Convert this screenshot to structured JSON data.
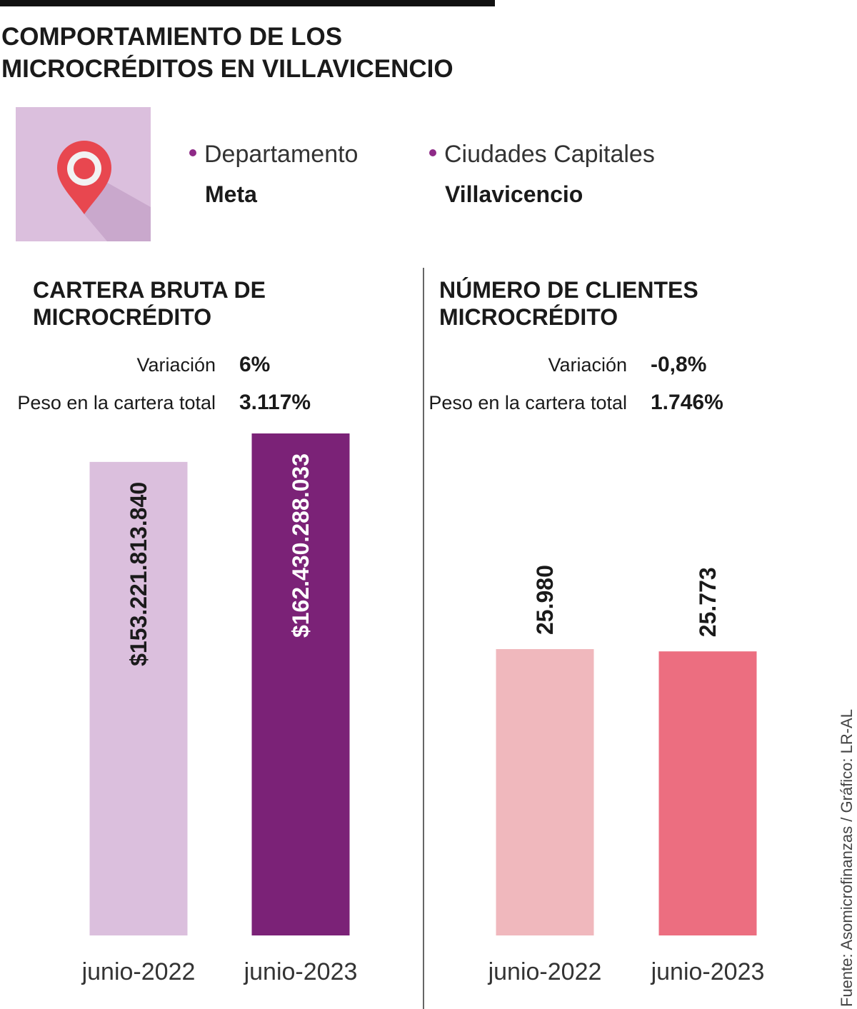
{
  "title": [
    "COMPORTAMIENTO DE LOS",
    "MICROCRÉDITOS EN VILLAVICENCIO"
  ],
  "location": [
    {
      "label": "Departamento",
      "value": "Meta"
    },
    {
      "label": "Ciudades Capitales",
      "value": "Villavicencio"
    }
  ],
  "source": "Fuente: Asomicrofinanzas / Gráfico: LR-AL",
  "chart_data": [
    {
      "type": "bar",
      "title": [
        "CARTERA BRUTA DE",
        "MICROCRÉDITO"
      ],
      "stats": [
        {
          "label": "Variación",
          "value": "6%"
        },
        {
          "label": "Peso en la cartera total",
          "value": "3.117%"
        }
      ],
      "categories": [
        "junio-2022",
        "junio-2023"
      ],
      "values": [
        153221813840,
        162430288033
      ],
      "value_labels": [
        "$153.221.813.840",
        "$162.430.288.033"
      ],
      "colors": [
        "#dbbfdd",
        "#7b2277"
      ]
    },
    {
      "type": "bar",
      "title": [
        "NÚMERO DE CLIENTES",
        "MICROCRÉDITO"
      ],
      "stats": [
        {
          "label": "Variación",
          "value": "-0,8%"
        },
        {
          "label": "Peso en la cartera total",
          "value": "1.746%"
        }
      ],
      "categories": [
        "junio-2022",
        "junio-2023"
      ],
      "values": [
        25980,
        25773
      ],
      "value_labels": [
        "25.980",
        "25.773"
      ],
      "colors": [
        "#f0b8bd",
        "#ec6e80"
      ]
    }
  ]
}
